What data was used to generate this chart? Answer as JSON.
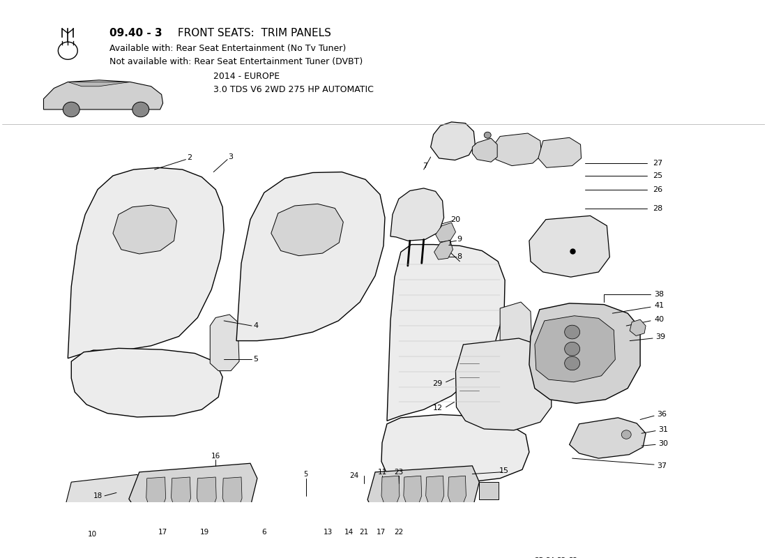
{
  "title_bold": "09.40 - 3",
  "title_rest": " FRONT SEATS:  TRIM PANELS",
  "available_with": "Available with: Rear Seat Entertainment (No Tv Tuner)",
  "not_available_with": "Not available with: Rear Seat Entertainment Tuner (DVBT)",
  "subtitle2": "2014 - EUROPE",
  "subtitle3": "3.0 TDS V6 2WD 275 HP AUTOMATIC",
  "bg_color": "#ffffff",
  "line_color": "#000000",
  "text_color": "#000000"
}
